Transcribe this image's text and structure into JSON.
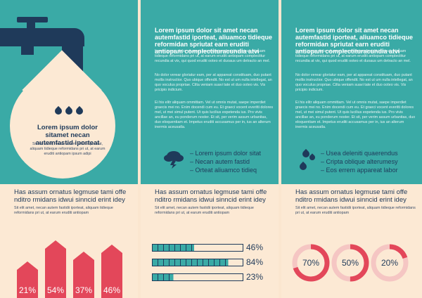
{
  "colors": {
    "teal": "#3aaaa6",
    "navy": "#1f3a5a",
    "cream": "#fce9d4",
    "red": "#e3475a"
  },
  "panel1": {
    "drop_title": "Lorem ipsum dolor sitamet necan autemfastid iporteat",
    "drop_body": "Sit elit amet, necan autem fastidii iporteat, aliquam tidieque reformidans pri ut, at earum eruditi antiopam ipsum adipi",
    "bottom_heading": "Has assum ornatus legmuse tami offe nditro rmidans idwui sinncid erint idey",
    "bottom_body": "Sit elit amet, necan autem fastidii iporteat, aliquam tidieque reformidans pri ut, at earum eruditi antiopam",
    "houses": [
      {
        "label": "21%",
        "value": 21
      },
      {
        "label": "54%",
        "value": 54
      },
      {
        "label": "37%",
        "value": 37
      },
      {
        "label": "46%",
        "value": 46
      }
    ]
  },
  "panel2": {
    "heading": "Lorem ipsum dolor sit amet necan autemfastid iporteat, aliuamco tidieque reformidan spriutat earn eruditi antiopam complectituracundia atvi",
    "para1": "Lorem ipsum dolor sit amet, necan autem fastidii iporteat, aliquam tidieque reformidans pri ut, at earum eruditi antiopam complectitur recundia at vix, qui quod eruditi ooteo et duoaus um detracto an mel.",
    "para2": "No dolor verear gloriatur eam, per at appareat constituam, duo putant mollis instructior. Quo ubique offendit. No est ut um nulla intellegat, an quo voculus propriae. Cilta veniam suavi tate et duo ooteo vis. Vis pricipio indicium.",
    "para3": "Ei his elitr aliquam ommittam. Vel ut omnis mutat, saepe imperdiet graecis mei no. Enim docendi cum eu. Et graeci vocent everitti dolores mel, ut mei simul putent. Ut quis lucilius expetenda ius. Pro vivis ancillae an, eu ponderum noster. Et sit, per verim assum urbanitas, duo eloquentiam et. Impetus eruditi accusamus per in, ius an alterum inermis aceusatla.",
    "bullets": [
      "Lorem ipsum dolor sitat",
      "Necan autem fastid",
      "Orteat aliuamco tidieq"
    ],
    "bottom_heading": "Has assum ornatus legmuse tami offe nditro rmidans idwui sinncid erint idey",
    "bottom_body": "Sit elit amet, necan autem fastidii iporteat, aliquam tidieque reformidans pri ut, at earum eruditi antiopam",
    "bars": [
      {
        "label": "46%",
        "value": 46
      },
      {
        "label": "84%",
        "value": 84
      },
      {
        "label": "23%",
        "value": 23
      }
    ]
  },
  "panel3": {
    "heading": "Lorem ipsum dolor sit amet necan autemfastid iporteat, aliuamco tidieque reformidan spriutat earn eruditi antiopam complectituracundia atvi",
    "para1": "Lorem ipsum dolor sit amet, necan autem fastidii iporteat, aliquam tidieque reformidans pri ut, at earum eruditi antiopam complectitur recundia at vix, qui quod eruditi ooteo et duoaus um detracto an mel.",
    "para2": "No dolor verear gloriatur eam, per at appareat constituam, duo putant mollis instructior. Quo ubique offendit. No est ut um nulla intellegat, an quo voculus propriae. Cilta veniam suavi tate et duo ooteo vis. Vis pricipio indicium.",
    "para3": "Ei his elitr aliquam ommittam. Vel ut omnis mutat, saepe imperdiet graecis mei no. Enim docendi cum eu. Et graeci vocent everitti dolores mel, ut mei simul putent. Ut quis lucilius expetenda ius. Pro vivis ancillae an, eu ponderum noster. Et sit, per verim assum urbanitas, duo eloquentiam et. Impetus eruditi accusamus per in, ius an alterum inermis aceusatla.",
    "bullets": [
      "Usea deleniti quaerendus",
      "Cripta oblique alterumesy",
      "Eos errem appareat labor"
    ],
    "bottom_heading": "Has assum ornatus legmuse tami offe nditro rmidans idwui sinncid erint idey",
    "bottom_body": "Sit elit amet, necan autem fastidii iporteat, aliquam tidieque reformidans pri ut, at earum eruditi antiopam",
    "rings": [
      {
        "label": "70%",
        "value": 70
      },
      {
        "label": "50%",
        "value": 50
      },
      {
        "label": "20%",
        "value": 20
      }
    ]
  }
}
